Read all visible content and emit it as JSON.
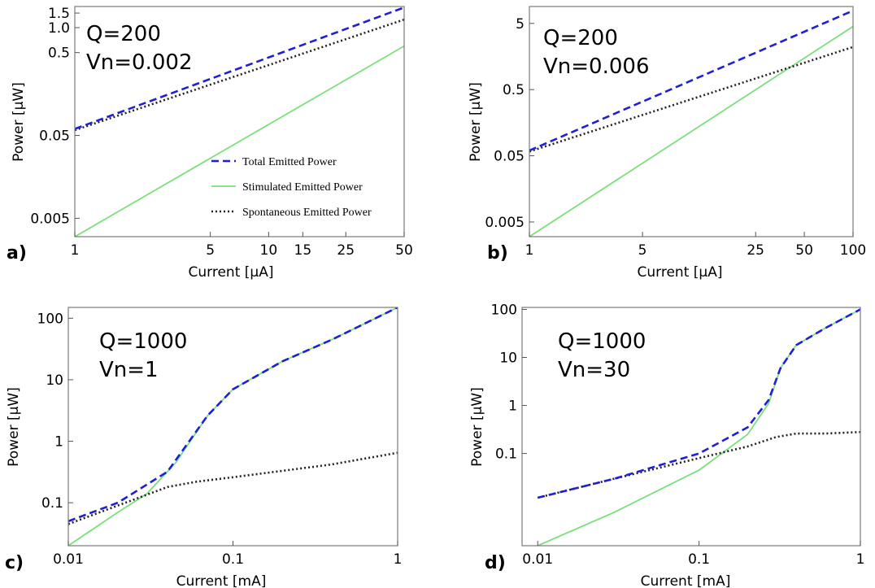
{
  "chart_data": [
    {
      "panel": "a)",
      "type": "line",
      "xlabel": "Current [µA]",
      "ylabel": "Power [µW]",
      "xscale": "log",
      "yscale": "log",
      "xlim": [
        1,
        50
      ],
      "ylim": [
        0.003,
        1.8
      ],
      "xticks": [
        1,
        5,
        10,
        15,
        25,
        50
      ],
      "xtick_labels": [
        "1",
        "5",
        "10",
        "15",
        "25",
        "50"
      ],
      "yticks": [
        0.005,
        0.05,
        0.5,
        1.0,
        1.5
      ],
      "ytick_labels": [
        "0.005",
        "0.05",
        "0.5",
        "1.0",
        "1.5"
      ],
      "annotations": [
        "Q=200",
        "Vn=0.002"
      ],
      "legend": {
        "placement": "inside-bottom-right",
        "entries": [
          "Total Emitted Power",
          "Stimulated  Emitted Power",
          "Spontaneous   Emitted Power"
        ]
      },
      "series": [
        {
          "name": "Total Emitted Power",
          "style": "dashed",
          "color": "#1f1fd6",
          "x": [
            1,
            50
          ],
          "y": [
            0.06,
            1.75
          ]
        },
        {
          "name": "Stimulated  Emitted Power",
          "style": "solid",
          "color": "#7be07b",
          "x": [
            1,
            50
          ],
          "y": [
            0.003,
            0.6
          ]
        },
        {
          "name": "Spontaneous   Emitted Power",
          "style": "dotted",
          "color": "#222222",
          "x": [
            1,
            50
          ],
          "y": [
            0.058,
            1.25
          ]
        }
      ]
    },
    {
      "panel": "b)",
      "type": "line",
      "xlabel": "Current [µA]",
      "ylabel": "Power [µW]",
      "xscale": "log",
      "yscale": "log",
      "xlim": [
        1,
        100
      ],
      "ylim": [
        0.003,
        9
      ],
      "xticks": [
        1,
        5,
        25,
        50,
        100
      ],
      "xtick_labels": [
        "1",
        "5",
        "25",
        "50",
        "100"
      ],
      "yticks": [
        0.005,
        0.05,
        0.5,
        5
      ],
      "ytick_labels": [
        "0.005",
        "0.05",
        "0.5",
        "5"
      ],
      "annotations": [
        "Q=200",
        "Vn=0.006"
      ],
      "series": [
        {
          "name": "Total Emitted Power",
          "style": "dashed",
          "color": "#1f1fd6",
          "x": [
            1,
            100
          ],
          "y": [
            0.06,
            7.8
          ]
        },
        {
          "name": "Stimulated  Emitted Power",
          "style": "solid",
          "color": "#7be07b",
          "x": [
            1,
            100
          ],
          "y": [
            0.003,
            4.5
          ]
        },
        {
          "name": "Spontaneous   Emitted Power",
          "style": "dotted",
          "color": "#222222",
          "x": [
            1,
            100
          ],
          "y": [
            0.058,
            2.2
          ]
        }
      ]
    },
    {
      "panel": "c)",
      "type": "line",
      "xlabel": "Current [mA]",
      "ylabel": "Power [µW]",
      "xscale": "log",
      "yscale": "log",
      "xlim": [
        0.01,
        1
      ],
      "ylim": [
        0.02,
        150
      ],
      "xticks": [
        0.01,
        0.1,
        1
      ],
      "xtick_labels": [
        "0.01",
        "0.1",
        "1"
      ],
      "yticks": [
        0.1,
        1,
        10,
        100
      ],
      "ytick_labels": [
        "0.1",
        "1",
        "10",
        "100"
      ],
      "annotations": [
        "Q=1000",
        "Vn=1"
      ],
      "series": [
        {
          "name": "Total Emitted Power",
          "style": "dashed",
          "color": "#1f1fd6",
          "x": [
            0.01,
            0.02,
            0.04,
            0.07,
            0.1,
            0.2,
            0.4,
            1
          ],
          "y": [
            0.05,
            0.1,
            0.32,
            2.6,
            7,
            20,
            45,
            150
          ]
        },
        {
          "name": "Stimulated  Emitted Power",
          "style": "solid",
          "color": "#7be07b",
          "x": [
            0.01,
            0.02,
            0.03,
            0.045,
            0.07,
            0.1,
            0.2,
            0.4,
            1
          ],
          "y": [
            0.02,
            0.07,
            0.14,
            0.45,
            2.6,
            7,
            20,
            45,
            150
          ]
        },
        {
          "name": "Spontaneous   Emitted Power",
          "style": "dotted",
          "color": "#222222",
          "x": [
            0.01,
            0.02,
            0.04,
            0.06,
            0.1,
            0.2,
            0.4,
            1
          ],
          "y": [
            0.045,
            0.09,
            0.18,
            0.22,
            0.26,
            0.33,
            0.42,
            0.65
          ]
        }
      ]
    },
    {
      "panel": "d)",
      "type": "line",
      "xlabel": "Current [mA]",
      "ylabel": "Power [µW]",
      "xscale": "log",
      "yscale": "log",
      "xlim": [
        0.008,
        1
      ],
      "ylim": [
        0.0012,
        110
      ],
      "xticks": [
        0.01,
        0.1,
        1
      ],
      "xtick_labels": [
        "0.01",
        "0.1",
        "1"
      ],
      "yticks": [
        0.1,
        1,
        10,
        100
      ],
      "ytick_labels": [
        "0.1",
        "1",
        "10",
        "100"
      ],
      "annotations": [
        "Q=1000",
        "Vn=30"
      ],
      "series": [
        {
          "name": "Total Emitted Power",
          "style": "dashed",
          "color": "#1f1fd6",
          "x": [
            0.01,
            0.03,
            0.1,
            0.2,
            0.27,
            0.32,
            0.4,
            0.6,
            1
          ],
          "y": [
            0.012,
            0.03,
            0.1,
            0.35,
            1.3,
            6,
            18,
            40,
            100
          ]
        },
        {
          "name": "Stimulated  Emitted Power",
          "style": "solid",
          "color": "#7be07b",
          "x": [
            0.01,
            0.03,
            0.1,
            0.2,
            0.27,
            0.32,
            0.4,
            0.6,
            1
          ],
          "y": [
            0.0012,
            0.006,
            0.045,
            0.25,
            1.1,
            6,
            18,
            40,
            100
          ]
        },
        {
          "name": "Spontaneous   Emitted Power",
          "style": "dotted",
          "color": "#222222",
          "x": [
            0.01,
            0.03,
            0.1,
            0.2,
            0.3,
            0.4,
            0.6,
            1
          ],
          "y": [
            0.012,
            0.03,
            0.08,
            0.14,
            0.22,
            0.26,
            0.26,
            0.28
          ]
        }
      ]
    }
  ]
}
